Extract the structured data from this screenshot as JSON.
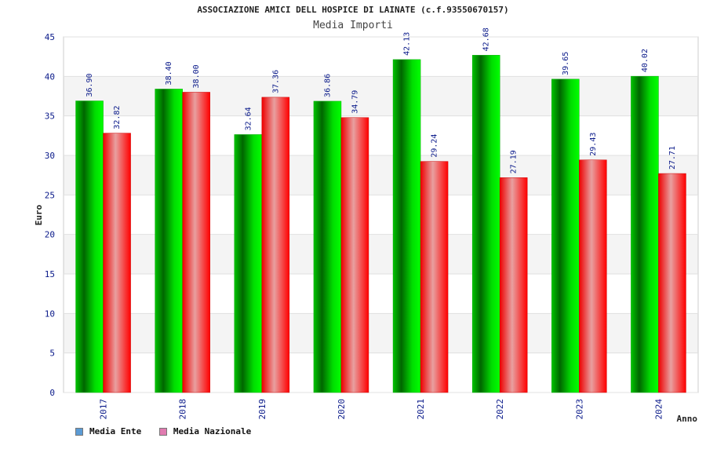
{
  "chart_data": {
    "type": "bar",
    "title": "ASSOCIAZIONE AMICI DELL HOSPICE DI LAINATE (c.f.93550670157)",
    "subtitle": "Media Importi",
    "xlabel": "Anno",
    "ylabel": "Euro",
    "ylim": [
      0,
      45
    ],
    "yticks": [
      0,
      5,
      10,
      15,
      20,
      25,
      30,
      35,
      40,
      45
    ],
    "categories": [
      "2017",
      "2018",
      "2019",
      "2020",
      "2021",
      "2022",
      "2023",
      "2024"
    ],
    "series": [
      {
        "name": "Media Ente",
        "values": [
          36.9,
          38.4,
          32.64,
          36.86,
          42.13,
          42.68,
          39.65,
          40.02
        ],
        "labels": [
          "36.90",
          "38.40",
          "32.64",
          "36.86",
          "42.13",
          "42.68",
          "39.65",
          "40.02"
        ],
        "color": "#00cc00",
        "legend_color": "#5b9bd5"
      },
      {
        "name": "Media Nazionale",
        "values": [
          32.82,
          38.0,
          37.36,
          34.79,
          29.24,
          27.19,
          29.43,
          27.71
        ],
        "labels": [
          "32.82",
          "38.00",
          "37.36",
          "34.79",
          "29.24",
          "27.19",
          "29.43",
          "27.71"
        ],
        "color": "#ff0000",
        "legend_color": "#e07bb0"
      }
    ],
    "grid": true,
    "legend_position": "bottom-left"
  }
}
